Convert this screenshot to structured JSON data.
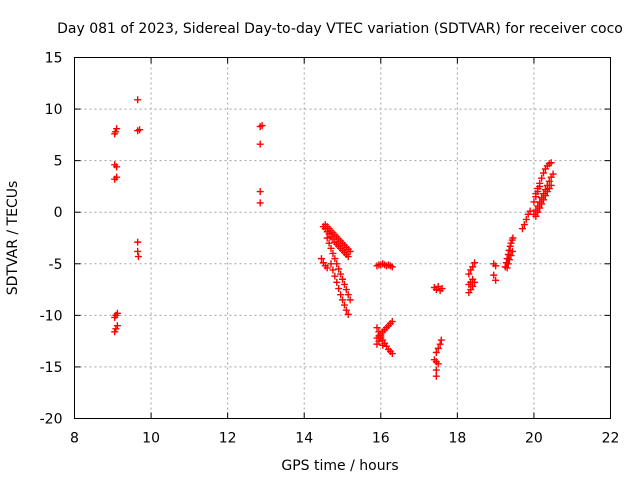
{
  "chart_data": {
    "type": "scatter",
    "title": "Day 081 of 2023, Sidereal Day-to-day VTEC variation (SDTVAR) for receiver coco",
    "xlabel": "GPS time / hours",
    "ylabel": "SDTVAR / TECUs",
    "xlim": [
      8,
      22
    ],
    "ylim": [
      -20,
      15
    ],
    "xticks": [
      8,
      10,
      12,
      14,
      16,
      18,
      20,
      22
    ],
    "yticks": [
      -20,
      -15,
      -10,
      -5,
      0,
      5,
      10,
      15
    ],
    "xtick_labels": [
      "8",
      "10",
      "12",
      "14",
      "16",
      "18",
      "20",
      "22"
    ],
    "ytick_labels": [
      "-20",
      "-15",
      "-10",
      "-5",
      "0",
      "5",
      "10",
      "15"
    ],
    "grid": true,
    "marker": "plus",
    "color": "#ff0000",
    "series": [
      {
        "name": "SDTVAR",
        "points": [
          [
            9.05,
            7.6
          ],
          [
            9.07,
            7.8
          ],
          [
            9.1,
            8.1
          ],
          [
            9.05,
            4.6
          ],
          [
            9.1,
            4.4
          ],
          [
            9.05,
            3.2
          ],
          [
            9.1,
            3.4
          ],
          [
            9.05,
            -10.2
          ],
          [
            9.08,
            -10.0
          ],
          [
            9.12,
            -9.8
          ],
          [
            9.05,
            -11.6
          ],
          [
            9.08,
            -11.3
          ],
          [
            9.12,
            -11.0
          ],
          [
            9.65,
            10.9
          ],
          [
            9.65,
            7.9
          ],
          [
            9.7,
            8.0
          ],
          [
            9.65,
            -2.9
          ],
          [
            9.65,
            -3.8
          ],
          [
            9.67,
            -4.3
          ],
          [
            12.85,
            8.3
          ],
          [
            12.9,
            8.4
          ],
          [
            12.85,
            6.6
          ],
          [
            12.85,
            2.0
          ],
          [
            12.85,
            0.9
          ],
          [
            14.5,
            -1.4
          ],
          [
            14.55,
            -1.6
          ],
          [
            14.6,
            -1.9
          ],
          [
            14.65,
            -2.1
          ],
          [
            14.7,
            -2.4
          ],
          [
            14.75,
            -2.6
          ],
          [
            14.8,
            -2.9
          ],
          [
            14.85,
            -3.1
          ],
          [
            14.9,
            -3.3
          ],
          [
            14.95,
            -3.5
          ],
          [
            15.0,
            -3.7
          ],
          [
            15.05,
            -3.9
          ],
          [
            15.1,
            -4.1
          ],
          [
            15.15,
            -4.3
          ],
          [
            14.55,
            -1.2
          ],
          [
            14.6,
            -1.4
          ],
          [
            14.65,
            -1.6
          ],
          [
            14.7,
            -1.8
          ],
          [
            14.75,
            -2.0
          ],
          [
            14.8,
            -2.2
          ],
          [
            14.85,
            -2.4
          ],
          [
            14.9,
            -2.6
          ],
          [
            14.95,
            -2.8
          ],
          [
            15.0,
            -3.0
          ],
          [
            15.05,
            -3.2
          ],
          [
            15.1,
            -3.4
          ],
          [
            15.15,
            -3.6
          ],
          [
            15.2,
            -3.8
          ],
          [
            14.6,
            -2.5
          ],
          [
            14.65,
            -3.0
          ],
          [
            14.7,
            -3.5
          ],
          [
            14.75,
            -4.0
          ],
          [
            14.8,
            -4.5
          ],
          [
            14.85,
            -5.0
          ],
          [
            14.9,
            -5.5
          ],
          [
            14.95,
            -6.0
          ],
          [
            15.0,
            -6.5
          ],
          [
            15.05,
            -7.0
          ],
          [
            15.1,
            -7.5
          ],
          [
            15.15,
            -8.0
          ],
          [
            15.2,
            -8.5
          ],
          [
            14.7,
            -5.0
          ],
          [
            14.75,
            -5.6
          ],
          [
            14.8,
            -6.2
          ],
          [
            14.85,
            -6.8
          ],
          [
            14.9,
            -7.4
          ],
          [
            14.95,
            -8.0
          ],
          [
            15.0,
            -8.5
          ],
          [
            15.05,
            -9.0
          ],
          [
            15.1,
            -9.5
          ],
          [
            15.15,
            -9.9
          ],
          [
            14.45,
            -4.5
          ],
          [
            14.5,
            -4.9
          ],
          [
            14.55,
            -5.2
          ],
          [
            14.6,
            -5.4
          ],
          [
            15.9,
            -5.2
          ],
          [
            15.95,
            -5.1
          ],
          [
            16.0,
            -5.1
          ],
          [
            16.05,
            -5.0
          ],
          [
            16.1,
            -5.1
          ],
          [
            16.15,
            -5.2
          ],
          [
            16.2,
            -5.1
          ],
          [
            16.25,
            -5.2
          ],
          [
            16.3,
            -5.3
          ],
          [
            15.9,
            -12.2
          ],
          [
            15.95,
            -12.0
          ],
          [
            16.0,
            -11.8
          ],
          [
            16.05,
            -11.6
          ],
          [
            16.1,
            -11.4
          ],
          [
            16.15,
            -11.2
          ],
          [
            16.2,
            -11.0
          ],
          [
            16.25,
            -10.8
          ],
          [
            16.3,
            -10.6
          ],
          [
            15.9,
            -11.2
          ],
          [
            15.95,
            -11.6
          ],
          [
            16.0,
            -12.0
          ],
          [
            16.05,
            -12.4
          ],
          [
            16.1,
            -12.7
          ],
          [
            16.15,
            -13.0
          ],
          [
            16.2,
            -13.3
          ],
          [
            16.25,
            -13.5
          ],
          [
            16.3,
            -13.7
          ],
          [
            15.9,
            -12.8
          ],
          [
            15.95,
            -12.5
          ],
          [
            16.0,
            -12.2
          ],
          [
            16.05,
            -12.9
          ],
          [
            17.45,
            -15.9
          ],
          [
            17.45,
            -15.3
          ],
          [
            17.4,
            -14.3
          ],
          [
            17.45,
            -14.5
          ],
          [
            17.5,
            -14.7
          ],
          [
            17.45,
            -13.6
          ],
          [
            17.5,
            -13.2
          ],
          [
            17.55,
            -12.8
          ],
          [
            17.58,
            -12.4
          ],
          [
            17.4,
            -7.3
          ],
          [
            17.45,
            -7.5
          ],
          [
            17.5,
            -7.2
          ],
          [
            17.55,
            -7.6
          ],
          [
            17.6,
            -7.4
          ],
          [
            18.3,
            -6.0
          ],
          [
            18.35,
            -5.6
          ],
          [
            18.4,
            -5.3
          ],
          [
            18.45,
            -4.9
          ],
          [
            18.3,
            -7.0
          ],
          [
            18.35,
            -6.8
          ],
          [
            18.4,
            -6.5
          ],
          [
            18.45,
            -6.8
          ],
          [
            18.3,
            -7.8
          ],
          [
            18.35,
            -7.5
          ],
          [
            18.4,
            -7.2
          ],
          [
            18.95,
            -5.0
          ],
          [
            19.0,
            -5.2
          ],
          [
            18.95,
            -6.1
          ],
          [
            19.0,
            -6.6
          ],
          [
            19.25,
            -5.3
          ],
          [
            19.28,
            -4.9
          ],
          [
            19.3,
            -4.5
          ],
          [
            19.33,
            -4.1
          ],
          [
            19.35,
            -3.7
          ],
          [
            19.38,
            -3.3
          ],
          [
            19.4,
            -3.0
          ],
          [
            19.43,
            -2.7
          ],
          [
            19.45,
            -2.5
          ],
          [
            19.3,
            -5.4
          ],
          [
            19.33,
            -5.0
          ],
          [
            19.36,
            -4.6
          ],
          [
            19.4,
            -4.2
          ],
          [
            19.44,
            -3.8
          ],
          [
            19.7,
            -1.6
          ],
          [
            19.75,
            -1.2
          ],
          [
            19.8,
            -0.7
          ],
          [
            19.85,
            -0.2
          ],
          [
            19.9,
            0.1
          ],
          [
            20.0,
            -0.2
          ],
          [
            20.05,
            0.2
          ],
          [
            20.1,
            0.6
          ],
          [
            20.15,
            1.0
          ],
          [
            20.2,
            1.4
          ],
          [
            20.25,
            1.8
          ],
          [
            20.3,
            2.2
          ],
          [
            20.35,
            2.6
          ],
          [
            20.4,
            3.0
          ],
          [
            20.45,
            3.4
          ],
          [
            20.5,
            3.7
          ],
          [
            20.05,
            -0.4
          ],
          [
            20.1,
            0.0
          ],
          [
            20.15,
            0.4
          ],
          [
            20.2,
            0.8
          ],
          [
            20.25,
            1.2
          ],
          [
            20.3,
            1.6
          ],
          [
            20.35,
            2.0
          ],
          [
            20.4,
            2.3
          ],
          [
            20.45,
            2.6
          ],
          [
            20.05,
            1.8
          ],
          [
            20.1,
            2.3
          ],
          [
            20.15,
            2.8
          ],
          [
            20.2,
            3.3
          ],
          [
            20.25,
            3.8
          ],
          [
            20.3,
            4.2
          ],
          [
            20.35,
            4.5
          ],
          [
            20.4,
            4.7
          ],
          [
            20.45,
            4.8
          ],
          [
            20.0,
            1.0
          ],
          [
            20.05,
            1.5
          ],
          [
            20.1,
            2.0
          ],
          [
            20.15,
            2.5
          ]
        ]
      }
    ]
  }
}
